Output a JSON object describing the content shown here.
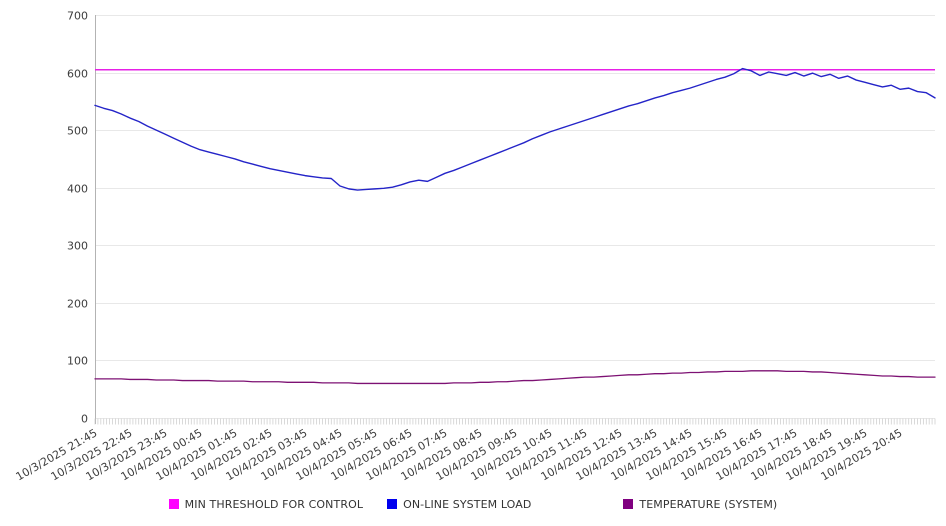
{
  "chart_data": {
    "type": "line",
    "title": "",
    "grid": true,
    "legend_position": "bottom",
    "background": "#ffffff",
    "y_axis": {
      "min": 0,
      "max": 700,
      "tick_step": 100,
      "ticks": [
        700,
        600,
        500,
        400,
        300,
        200,
        100,
        0
      ]
    },
    "x_axis": {
      "start_label": "10/3/2025 21:45",
      "end_label": "10/4/2025 20:45",
      "interval_minutes": 15,
      "label_every_n_points": 4,
      "labels": [
        "10/3/2025 21:45",
        "10/3/2025 22:45",
        "10/3/2025 23:45",
        "10/4/2025 00:45",
        "10/4/2025 01:45",
        "10/4/2025 02:45",
        "10/4/2025 03:45",
        "10/4/2025 04:45",
        "10/4/2025 05:45",
        "10/4/2025 06:45",
        "10/4/2025 07:45",
        "10/4/2025 08:45",
        "10/4/2025 09:45",
        "10/4/2025 10:45",
        "10/4/2025 11:45",
        "10/4/2025 12:45",
        "10/4/2025 13:45",
        "10/4/2025 14:45",
        "10/4/2025 15:45",
        "10/4/2025 16:45",
        "10/4/2025 17:45",
        "10/4/2025 18:45",
        "10/4/2025 19:45",
        "10/4/2025 20:45"
      ]
    },
    "series": [
      {
        "name": "MIN THRESHOLD FOR CONTROL",
        "style": "threshold",
        "color": "#e620e6",
        "swatch_color": "#ff00ff",
        "value": 605
      },
      {
        "name": "ON-LINE SYSTEM LOAD",
        "style": "line",
        "color": "#2424c8",
        "swatch_color": "#0000ee",
        "values": [
          543,
          538,
          534,
          528,
          521,
          515,
          507,
          500,
          493,
          486,
          479,
          472,
          466,
          462,
          458,
          454,
          450,
          445,
          441,
          437,
          433,
          430,
          427,
          424,
          421,
          419,
          417,
          416,
          403,
          398,
          396,
          397,
          398,
          399,
          401,
          405,
          410,
          413,
          411,
          418,
          425,
          430,
          436,
          442,
          448,
          454,
          460,
          466,
          472,
          478,
          485,
          491,
          497,
          502,
          507,
          512,
          517,
          522,
          527,
          532,
          537,
          542,
          546,
          551,
          556,
          560,
          565,
          569,
          573,
          578,
          583,
          588,
          592,
          598,
          607,
          603,
          595,
          601,
          598,
          595,
          600,
          594,
          599,
          593,
          597,
          590,
          594,
          587,
          583,
          579,
          575,
          578,
          571,
          573,
          567,
          565,
          556
        ]
      },
      {
        "name": "TEMPERATURE (SYSTEM)",
        "style": "line",
        "color": "#7d1173",
        "swatch_color": "#800080",
        "values": [
          68,
          68,
          68,
          68,
          67,
          67,
          67,
          66,
          66,
          66,
          65,
          65,
          65,
          65,
          64,
          64,
          64,
          64,
          63,
          63,
          63,
          63,
          62,
          62,
          62,
          62,
          61,
          61,
          61,
          61,
          60,
          60,
          60,
          60,
          60,
          60,
          60,
          60,
          60,
          60,
          60,
          61,
          61,
          61,
          62,
          62,
          63,
          63,
          64,
          65,
          65,
          66,
          67,
          68,
          69,
          70,
          71,
          71,
          72,
          73,
          74,
          75,
          75,
          76,
          77,
          77,
          78,
          78,
          79,
          79,
          80,
          80,
          81,
          81,
          81,
          82,
          82,
          82,
          82,
          81,
          81,
          81,
          80,
          80,
          79,
          78,
          77,
          76,
          75,
          74,
          73,
          73,
          72,
          72,
          71,
          71,
          71
        ]
      }
    ]
  },
  "colors": {
    "grid": "#e8e8e8",
    "axis": "#b3b3b3",
    "minor_tick": "#c9c9c9",
    "tick_label": "#3d3d3d",
    "legend_text": "#333333"
  }
}
